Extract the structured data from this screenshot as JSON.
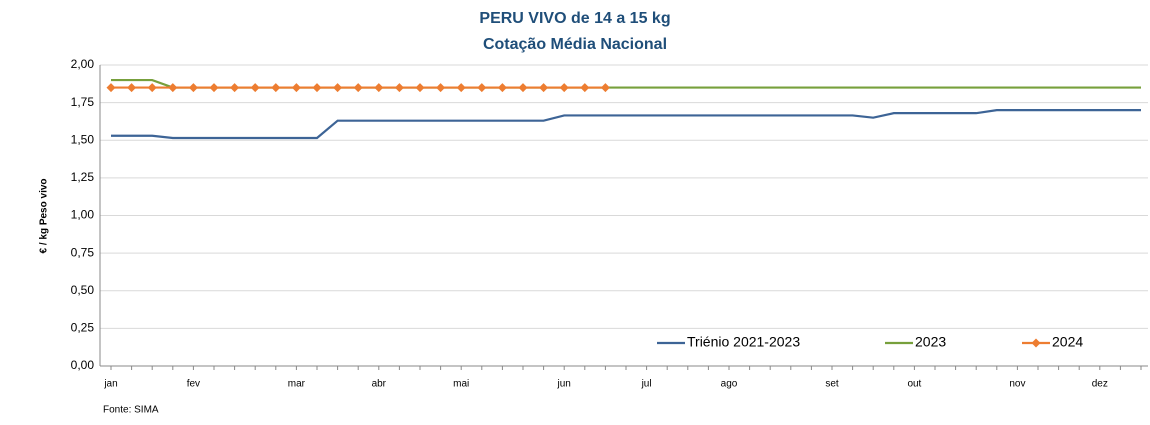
{
  "chart_data": {
    "type": "line",
    "title": "PERU VIVO de 14 a 15 kg",
    "subtitle": "Cotação Média Nacional",
    "y_label": "€ / kg Peso vivo",
    "source": "Fonte: SIMA",
    "categories": [
      "jan",
      null,
      null,
      null,
      "fev",
      null,
      null,
      null,
      null,
      "mar",
      null,
      null,
      null,
      "abr",
      null,
      null,
      null,
      "mai",
      null,
      null,
      null,
      null,
      "jun",
      null,
      null,
      null,
      "jul",
      null,
      null,
      null,
      "ago",
      null,
      null,
      null,
      null,
      "set",
      null,
      null,
      null,
      "out",
      null,
      null,
      null,
      null,
      "nov",
      null,
      null,
      null,
      "dez",
      null,
      null
    ],
    "series": [
      {
        "name": "Triénio 2021-2023",
        "color": "#3d6496",
        "marker": false,
        "values": [
          1.53,
          1.53,
          1.53,
          1.515,
          1.515,
          1.515,
          1.515,
          1.515,
          1.515,
          1.515,
          1.515,
          1.63,
          1.63,
          1.63,
          1.63,
          1.63,
          1.63,
          1.63,
          1.63,
          1.63,
          1.63,
          1.63,
          1.665,
          1.665,
          1.665,
          1.665,
          1.665,
          1.665,
          1.665,
          1.665,
          1.665,
          1.665,
          1.665,
          1.665,
          1.665,
          1.665,
          1.665,
          1.65,
          1.68,
          1.68,
          1.68,
          1.68,
          1.68,
          1.7,
          1.7,
          1.7,
          1.7,
          1.7,
          1.7,
          1.7,
          1.7
        ]
      },
      {
        "name": "2023",
        "color": "#77a03c",
        "marker": false,
        "values": [
          1.9,
          1.9,
          1.9,
          1.85,
          1.85,
          1.85,
          1.85,
          1.85,
          1.85,
          1.85,
          1.85,
          1.85,
          1.85,
          1.85,
          1.85,
          1.85,
          1.85,
          1.85,
          1.85,
          1.85,
          1.85,
          1.85,
          1.85,
          1.85,
          1.85,
          1.85,
          1.85,
          1.85,
          1.85,
          1.85,
          1.85,
          1.85,
          1.85,
          1.85,
          1.85,
          1.85,
          1.85,
          1.85,
          1.85,
          1.85,
          1.85,
          1.85,
          1.85,
          1.85,
          1.85,
          1.85,
          1.85,
          1.85,
          1.85,
          1.85,
          1.85
        ]
      },
      {
        "name": "2024",
        "color": "#ed7d31",
        "marker": true,
        "values": [
          1.85,
          1.85,
          1.85,
          1.85,
          1.85,
          1.85,
          1.85,
          1.85,
          1.85,
          1.85,
          1.85,
          1.85,
          1.85,
          1.85,
          1.85,
          1.85,
          1.85,
          1.85,
          1.85,
          1.85,
          1.85,
          1.85,
          1.85,
          1.85,
          1.85,
          null,
          null,
          null,
          null,
          null,
          null,
          null,
          null,
          null,
          null,
          null,
          null,
          null,
          null,
          null,
          null,
          null,
          null,
          null,
          null,
          null,
          null,
          null,
          null,
          null,
          null
        ]
      }
    ],
    "ylim": [
      0,
      2
    ],
    "yticks": [
      {
        "value": 0,
        "label": "0,00"
      },
      {
        "value": 0.25,
        "label": "0,25"
      },
      {
        "value": 0.5,
        "label": "0,50"
      },
      {
        "value": 0.75,
        "label": "0,75"
      },
      {
        "value": 1,
        "label": "1,00"
      },
      {
        "value": 1.25,
        "label": "1,25"
      },
      {
        "value": 1.5,
        "label": "1,50"
      },
      {
        "value": 1.75,
        "label": "1,75"
      },
      {
        "value": 2,
        "label": "2,00"
      }
    ],
    "grid": true,
    "legend": "lower right"
  }
}
